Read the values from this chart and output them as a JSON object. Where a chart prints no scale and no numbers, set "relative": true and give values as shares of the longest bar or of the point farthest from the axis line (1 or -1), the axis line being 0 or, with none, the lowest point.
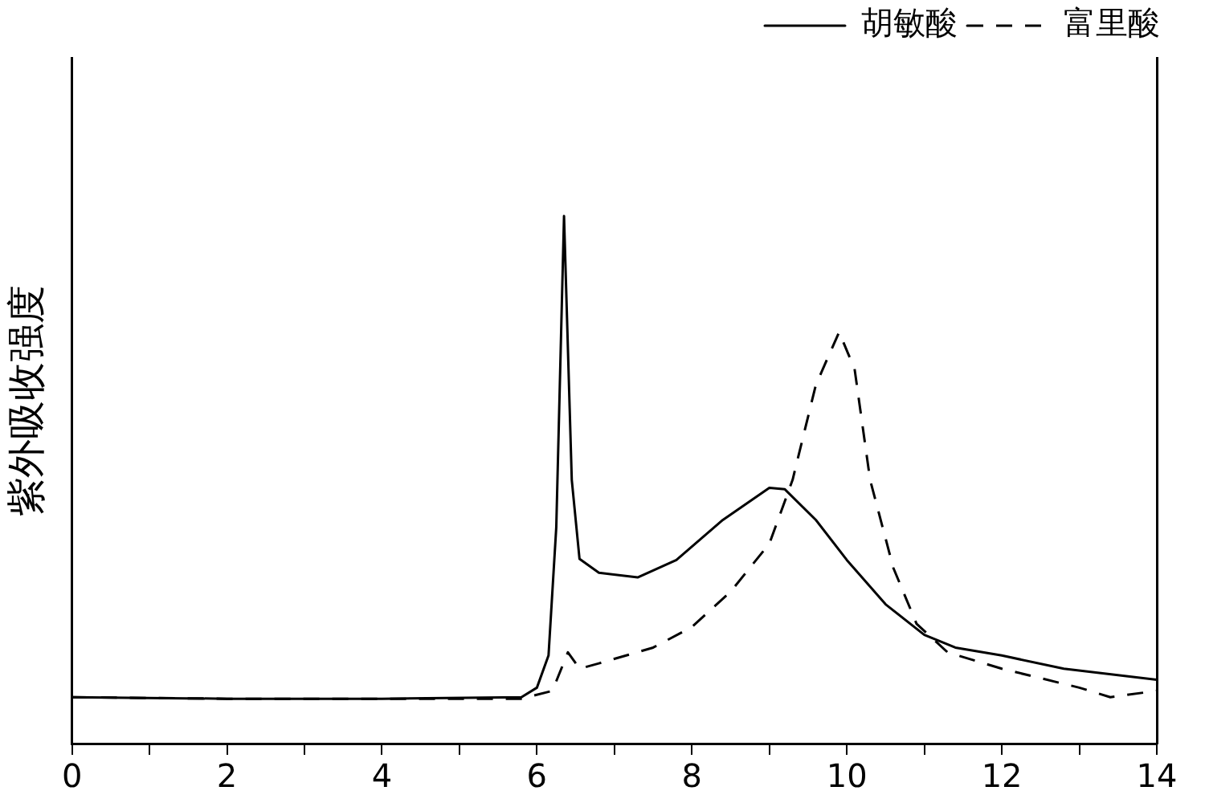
{
  "chart_data": {
    "type": "line",
    "ylabel": "紫外吸收强度",
    "relative": true,
    "xlim": [
      0,
      14
    ],
    "xticks": [
      0,
      {
        "value": 1,
        "label": null
      },
      2,
      {
        "value": 3,
        "label": null
      },
      4,
      {
        "value": 5,
        "label": null
      },
      6,
      {
        "value": 7,
        "label": null
      },
      8,
      {
        "value": 9,
        "label": null
      },
      10,
      {
        "value": 11,
        "label": null
      },
      12,
      {
        "value": 13,
        "label": null
      },
      14
    ],
    "grid": false,
    "legend": "top right",
    "marker": "none",
    "series": [
      {
        "name": "胡敏酸",
        "color": "#000000",
        "line_style": "solid",
        "x": [
          0,
          2,
          4,
          5.8,
          6.0,
          6.15,
          6.25,
          6.35,
          6.45,
          6.55,
          6.8,
          7.3,
          7.8,
          8.4,
          9.0,
          9.2,
          9.6,
          10.0,
          10.5,
          11.0,
          11.4,
          12,
          12.8,
          14
        ],
        "values": [
          0.088,
          0.085,
          0.085,
          0.088,
          0.106,
          0.167,
          0.41,
          1,
          0.5,
          0.35,
          0.324,
          0.315,
          0.348,
          0.424,
          0.485,
          0.482,
          0.424,
          0.348,
          0.264,
          0.206,
          0.182,
          0.167,
          0.142,
          0.121
        ]
      },
      {
        "name": "富里酸",
        "color": "#000000",
        "line_style": "dashed",
        "x": [
          0,
          2,
          4,
          5.8,
          6.2,
          6.4,
          6.55,
          6.8,
          7.5,
          8.0,
          8.5,
          9.0,
          9.3,
          9.6,
          9.9,
          10.1,
          10.3,
          10.6,
          10.9,
          11.3,
          12,
          13,
          13.4,
          14
        ],
        "values": [
          0.088,
          0.085,
          0.085,
          0.085,
          0.1,
          0.173,
          0.142,
          0.152,
          0.182,
          0.221,
          0.288,
          0.379,
          0.5,
          0.68,
          0.78,
          0.71,
          0.5,
          0.333,
          0.227,
          0.173,
          0.142,
          0.106,
          0.088,
          0.1
        ]
      }
    ]
  }
}
